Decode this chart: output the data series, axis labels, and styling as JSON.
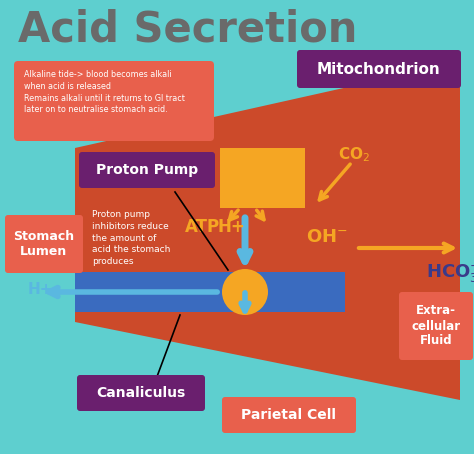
{
  "bg_color": "#5ecfcf",
  "title": "Acid Secretion",
  "title_color": "#6a6a6a",
  "title_fontsize": 30,
  "alkaline_box_color": "#e8604c",
  "alkaline_text": "Alkaline tide-> blood becomes alkali\nwhen acid is released\nRemains alkali until it returns to GI tract\nlater on to neutralise stomach acid.",
  "mitochondrion_box_color": "#6a1f6e",
  "mitochondrion_text": "Mitochondrion",
  "parietal_cell_color": "#cc4a2a",
  "proton_pump_box_color": "#6a1f6e",
  "proton_pump_text": "Proton Pump",
  "stomach_lumen_box_color": "#e8604c",
  "stomach_lumen_text": "Stomach\nLumen",
  "canaliculus_box_color": "#6a1f6e",
  "canaliculus_text": "Canaliculus",
  "parietal_cell_box_color": "#e8604c",
  "parietal_cell_text": "Parietal Cell",
  "extracellular_box_color": "#e8604c",
  "extracellular_text": "Extra-\ncellular\nFluid",
  "yellow": "#f5a623",
  "blue": "#5ab8e0",
  "dark_blue": "#3a6bbf",
  "hco3_color": "#3a3a8a",
  "inhibitor_text": "Proton pump\ninhibitors reduce\nthe amount of\nacid the stomach\nproduces"
}
